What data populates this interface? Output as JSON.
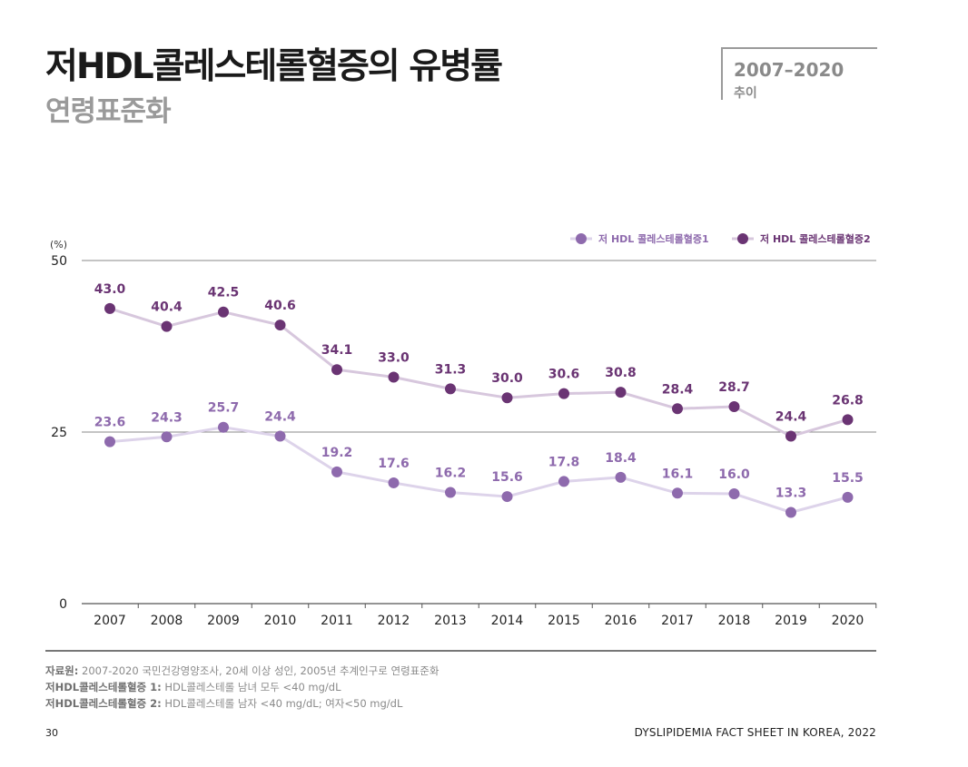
{
  "header": {
    "title": "저HDL콜레스테롤혈증의 유병률",
    "subtitle": "연령표준화",
    "period_range": "2007–2020",
    "period_note": "추이"
  },
  "chart_data": {
    "type": "line",
    "ylabel": "(%)",
    "ylim": [
      0,
      50
    ],
    "yticks": [
      0,
      25,
      50
    ],
    "grid": true,
    "legend_position": "top-right",
    "x": [
      "2007",
      "2008",
      "2009",
      "2010",
      "2011",
      "2012",
      "2013",
      "2014",
      "2015",
      "2016",
      "2017",
      "2018",
      "2019",
      "2020"
    ],
    "series": [
      {
        "name": "저 HDL 콜레스테롤혈증1",
        "color": "#8e6aad",
        "line_color": "#ddd3ea",
        "values": [
          23.6,
          24.3,
          25.7,
          24.4,
          19.2,
          17.6,
          16.2,
          15.6,
          17.8,
          18.4,
          16.1,
          16.0,
          13.3,
          15.5
        ]
      },
      {
        "name": "저 HDL 콜레스테롤혈증2",
        "color": "#6a3473",
        "line_color": "#d7c7dd",
        "values": [
          43.0,
          40.4,
          42.5,
          40.6,
          34.1,
          33.0,
          31.3,
          30.0,
          30.6,
          30.8,
          28.4,
          28.7,
          24.4,
          26.8
        ]
      }
    ]
  },
  "footnotes": {
    "source_label": "자료원:",
    "source_text": " 2007-2020 국민건강영양조사, 20세 이상 성인, 2005년 추계인구로 연령표준화",
    "def1_label": "저HDL콜레스테롤혈증 1:",
    "def1_text": " HDL콜레스테롤 남녀 모두 <40 mg/dL",
    "def2_label": "저HDL콜레스테롤혈증 2:",
    "def2_text": " HDL콜레스테롤 남자 <40 mg/dL; 여자<50 mg/dL"
  },
  "page": {
    "number": "30",
    "running_title": "DYSLIPIDEMIA FACT SHEET IN KOREA, 2022"
  }
}
